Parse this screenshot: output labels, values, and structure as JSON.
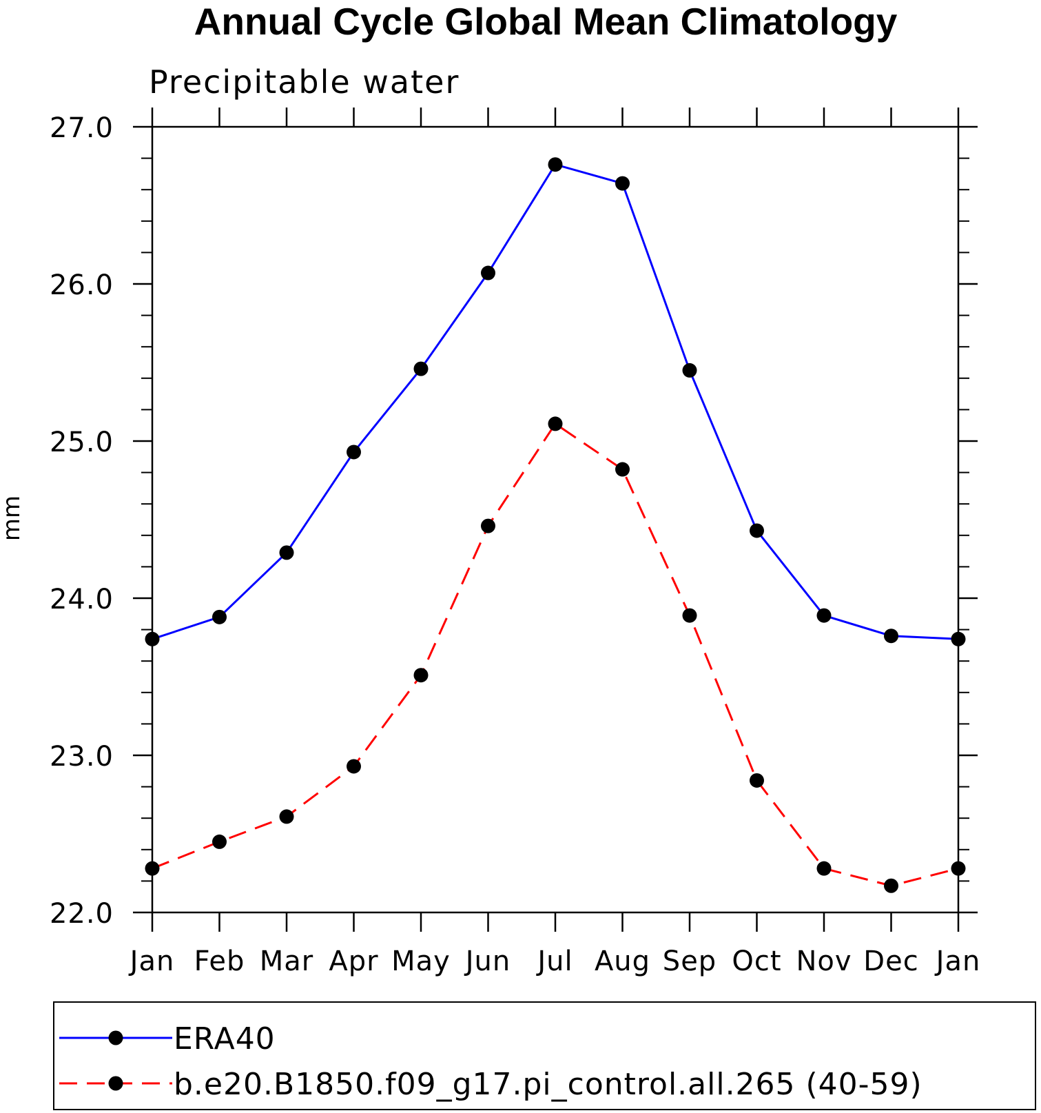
{
  "chart_data": {
    "type": "line",
    "title": "Annual Cycle Global Mean Climatology",
    "subtitle": "Precipitable water",
    "xlabel": "",
    "ylabel": "mm",
    "categories": [
      "Jan",
      "Feb",
      "Mar",
      "Apr",
      "May",
      "Jun",
      "Jul",
      "Aug",
      "Sep",
      "Oct",
      "Nov",
      "Dec",
      "Jan"
    ],
    "ylim": [
      22.0,
      27.0
    ],
    "yticks": [
      "22.0",
      "23.0",
      "24.0",
      "25.0",
      "26.0",
      "27.0"
    ],
    "grid": false,
    "legend_position": "bottom",
    "series": [
      {
        "name": "ERA40",
        "color": "#0000ff",
        "line_style": "solid",
        "marker": "filled-circle",
        "values": [
          23.74,
          23.88,
          24.29,
          24.93,
          25.46,
          26.07,
          26.76,
          26.64,
          25.45,
          24.43,
          23.89,
          23.76,
          23.74
        ]
      },
      {
        "name": "b.e20.B1850.f09_g17.pi_control.all.265 (40-59)",
        "color": "#ff0000",
        "line_style": "dashed",
        "marker": "filled-circle",
        "values": [
          22.28,
          22.45,
          22.61,
          22.93,
          23.51,
          24.46,
          25.11,
          24.82,
          23.89,
          22.84,
          22.28,
          22.17,
          22.28
        ]
      }
    ]
  }
}
